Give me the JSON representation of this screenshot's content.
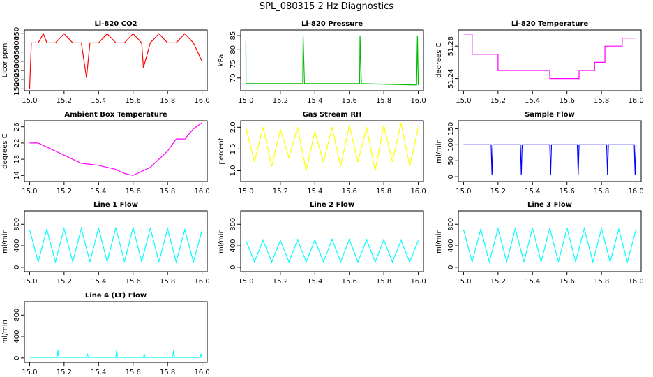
{
  "title": "SPL_080315  2 Hz Diagnostics",
  "chart_data": [
    {
      "type": "line",
      "title": "Li-820 CO2",
      "ylabel": "Licor ppm",
      "color": "#ff0000",
      "x": [
        15.0,
        15.01,
        15.05,
        15.08,
        15.1,
        15.15,
        15.2,
        15.25,
        15.3,
        15.33,
        15.35,
        15.4,
        15.45,
        15.5,
        15.55,
        15.6,
        15.65,
        15.66,
        15.7,
        15.75,
        15.8,
        15.85,
        15.9,
        15.95,
        16.0
      ],
      "values": [
        150,
        400,
        400,
        450,
        400,
        400,
        450,
        400,
        400,
        210,
        400,
        400,
        450,
        400,
        400,
        450,
        400,
        265,
        400,
        450,
        400,
        400,
        450,
        400,
        300
      ],
      "xlim": [
        14.97,
        16.03
      ],
      "xticks": [
        {
          "value": 15,
          "label": "15.0"
        },
        15.2,
        15.4,
        15.6,
        15.8,
        {
          "value": 16,
          "label": "16.0"
        }
      ],
      "ylim": [
        140,
        470
      ],
      "yticks": [
        150,
        200,
        250,
        300,
        350,
        400,
        450
      ]
    },
    {
      "type": "line",
      "title": "Li-820 Pressure",
      "ylabel": "kPa",
      "color": "#00bb00",
      "x": [
        15.0,
        15.001,
        15.01,
        15.33,
        15.332,
        15.34,
        15.66,
        15.662,
        15.67,
        15.99,
        15.995,
        16.0
      ],
      "values": [
        83,
        68,
        68,
        68,
        85,
        68,
        68,
        85,
        68,
        67.5,
        85,
        67.5
      ],
      "xlim": [
        14.97,
        16.03
      ],
      "xticks": [
        {
          "value": 15,
          "label": "15.0"
        },
        15.2,
        15.4,
        15.6,
        15.8,
        {
          "value": 16,
          "label": "16.0"
        }
      ],
      "ylim": [
        65.5,
        87
      ],
      "yticks": [
        70,
        75,
        80,
        85
      ]
    },
    {
      "type": "line",
      "title": "Li-820 Temperature",
      "ylabel": "degrees C",
      "color": "#ff00ff",
      "x": [
        15.0,
        15.05,
        15.05,
        15.2,
        15.2,
        15.5,
        15.5,
        15.67,
        15.67,
        15.76,
        15.76,
        15.82,
        15.82,
        15.92,
        15.92,
        16.0
      ],
      "values": [
        51.295,
        51.295,
        51.27,
        51.27,
        51.25,
        51.25,
        51.24,
        51.24,
        51.25,
        51.25,
        51.26,
        51.26,
        51.28,
        51.28,
        51.29,
        51.29
      ],
      "xlim": [
        14.97,
        16.03
      ],
      "xticks": [
        {
          "value": 15,
          "label": "15.0"
        },
        15.2,
        15.4,
        15.6,
        15.8,
        {
          "value": 16,
          "label": "16.0"
        }
      ],
      "ylim": [
        51.225,
        51.3
      ],
      "yticks": [
        51.24,
        51.28
      ]
    },
    {
      "type": "line",
      "title": "Ambient Box Temperature",
      "ylabel": "degrees C",
      "color": "#ff00ff",
      "x": [
        15.0,
        15.05,
        15.1,
        15.2,
        15.3,
        15.4,
        15.5,
        15.55,
        15.6,
        15.7,
        15.8,
        15.85,
        15.9,
        15.95,
        16.0
      ],
      "values": [
        22,
        22,
        21,
        19,
        17,
        16.5,
        15.5,
        14.5,
        14,
        16,
        20,
        23,
        23,
        25.5,
        27
      ],
      "xlim": [
        14.97,
        16.03
      ],
      "xticks": [
        {
          "value": 15,
          "label": "15.0"
        },
        15.2,
        15.4,
        15.6,
        15.8,
        {
          "value": 16,
          "label": "16.0"
        }
      ],
      "ylim": [
        12.5,
        27.5
      ],
      "yticks": [
        14,
        18,
        22,
        26
      ]
    },
    {
      "type": "line",
      "title": "Gas Stream RH",
      "ylabel": "percent",
      "color": "#ffff00",
      "x": [
        15.0,
        15.05,
        15.1,
        15.15,
        15.2,
        15.25,
        15.3,
        15.35,
        15.4,
        15.45,
        15.5,
        15.55,
        15.6,
        15.65,
        15.7,
        15.75,
        15.8,
        15.85,
        15.9,
        15.95,
        16.0
      ],
      "values": [
        2.0,
        1.2,
        2.0,
        1.1,
        1.95,
        1.3,
        2.0,
        1.0,
        1.9,
        1.2,
        2.0,
        1.1,
        2.05,
        1.2,
        2.0,
        1.0,
        2.05,
        1.2,
        2.1,
        1.1,
        2.0
      ],
      "xlim": [
        14.97,
        16.03
      ],
      "xticks": [
        {
          "value": 15,
          "label": "15.0"
        },
        15.2,
        15.4,
        15.6,
        15.8,
        {
          "value": 16,
          "label": "16.0"
        }
      ],
      "ylim": [
        0.75,
        2.15
      ],
      "yticks": [
        {
          "value": 1,
          "label": "1.0"
        },
        1.5,
        {
          "value": 2,
          "label": "2.0"
        }
      ]
    },
    {
      "type": "line",
      "title": "Sample Flow",
      "ylabel": "ml/min",
      "color": "#0000ff",
      "x": [
        15.0,
        15.16,
        15.165,
        15.17,
        15.33,
        15.335,
        15.34,
        15.5,
        15.505,
        15.51,
        15.66,
        15.665,
        15.67,
        15.83,
        15.835,
        15.84,
        15.99,
        15.995,
        16.0
      ],
      "values": [
        100,
        100,
        5,
        100,
        100,
        5,
        100,
        100,
        5,
        100,
        100,
        5,
        100,
        100,
        5,
        100,
        100,
        5,
        100
      ],
      "xlim": [
        14.97,
        16.03
      ],
      "xticks": [
        {
          "value": 15,
          "label": "15.0"
        },
        15.2,
        15.4,
        15.6,
        15.8,
        {
          "value": 16,
          "label": "16.0"
        }
      ],
      "ylim": [
        -15,
        175
      ],
      "yticks": [
        0,
        50,
        100,
        150
      ]
    },
    {
      "type": "line",
      "title": "Line 1 Flow",
      "ylabel": "ml/min",
      "color": "#00ffff",
      "x": [
        15.0,
        15.05,
        15.1,
        15.15,
        15.2,
        15.25,
        15.3,
        15.35,
        15.4,
        15.45,
        15.5,
        15.55,
        15.6,
        15.65,
        15.7,
        15.75,
        15.8,
        15.85,
        15.9,
        15.95,
        16.0
      ],
      "values": [
        700,
        100,
        710,
        100,
        720,
        100,
        720,
        100,
        730,
        100,
        740,
        100,
        740,
        100,
        730,
        100,
        720,
        100,
        700,
        100,
        690
      ],
      "xlim": [
        14.97,
        16.03
      ],
      "xticks": [
        {
          "value": 15,
          "label": "15.0"
        },
        15.2,
        15.4,
        15.6,
        15.8,
        {
          "value": 16,
          "label": "16.0"
        }
      ],
      "ylim": [
        -80,
        1050
      ],
      "yticks": [
        0,
        400,
        800
      ]
    },
    {
      "type": "line",
      "title": "Line 2 Flow",
      "ylabel": "ml/min",
      "color": "#00ffff",
      "x": [
        15.0,
        15.05,
        15.1,
        15.15,
        15.2,
        15.25,
        15.3,
        15.35,
        15.4,
        15.45,
        15.5,
        15.55,
        15.6,
        15.65,
        15.7,
        15.75,
        15.8,
        15.85,
        15.9,
        15.95,
        16.0
      ],
      "values": [
        500,
        100,
        500,
        100,
        500,
        100,
        510,
        100,
        510,
        100,
        520,
        100,
        520,
        100,
        510,
        100,
        510,
        100,
        500,
        100,
        500
      ],
      "xlim": [
        14.97,
        16.03
      ],
      "xticks": [
        {
          "value": 15,
          "label": "15.0"
        },
        15.2,
        15.4,
        15.6,
        15.8,
        {
          "value": 16,
          "label": "16.0"
        }
      ],
      "ylim": [
        -80,
        1050
      ],
      "yticks": [
        0,
        400,
        800
      ]
    },
    {
      "type": "line",
      "title": "Line 3 Flow",
      "ylabel": "ml/min",
      "color": "#00ffff",
      "x": [
        15.0,
        15.05,
        15.1,
        15.15,
        15.2,
        15.25,
        15.3,
        15.35,
        15.4,
        15.45,
        15.5,
        15.55,
        15.6,
        15.65,
        15.7,
        15.75,
        15.8,
        15.85,
        15.9,
        15.95,
        16.0
      ],
      "values": [
        700,
        100,
        710,
        100,
        720,
        100,
        720,
        100,
        730,
        100,
        730,
        100,
        730,
        100,
        720,
        100,
        720,
        100,
        710,
        100,
        700
      ],
      "xlim": [
        14.97,
        16.03
      ],
      "xticks": [
        {
          "value": 15,
          "label": "15.0"
        },
        15.2,
        15.4,
        15.6,
        15.8,
        {
          "value": 16,
          "label": "16.0"
        }
      ],
      "ylim": [
        -80,
        1050
      ],
      "yticks": [
        0,
        400,
        800
      ]
    },
    {
      "type": "line",
      "title": "Line 4 (LT) Flow",
      "ylabel": "ml/min",
      "color": "#00ffff",
      "x": [
        15.0,
        15.16,
        15.165,
        15.17,
        15.33,
        15.335,
        15.34,
        15.5,
        15.505,
        15.51,
        15.66,
        15.665,
        15.67,
        15.83,
        15.835,
        15.84,
        15.99,
        15.995,
        16.0
      ],
      "values": [
        10,
        10,
        150,
        10,
        10,
        80,
        10,
        10,
        150,
        10,
        10,
        70,
        10,
        10,
        150,
        10,
        10,
        80,
        10
      ],
      "xlim": [
        14.97,
        16.03
      ],
      "xticks": [
        {
          "value": 15,
          "label": "15.0"
        },
        15.2,
        15.4,
        15.6,
        15.8,
        {
          "value": 16,
          "label": "16.0"
        }
      ],
      "ylim": [
        -80,
        1050
      ],
      "yticks": [
        0,
        400,
        800
      ]
    }
  ]
}
